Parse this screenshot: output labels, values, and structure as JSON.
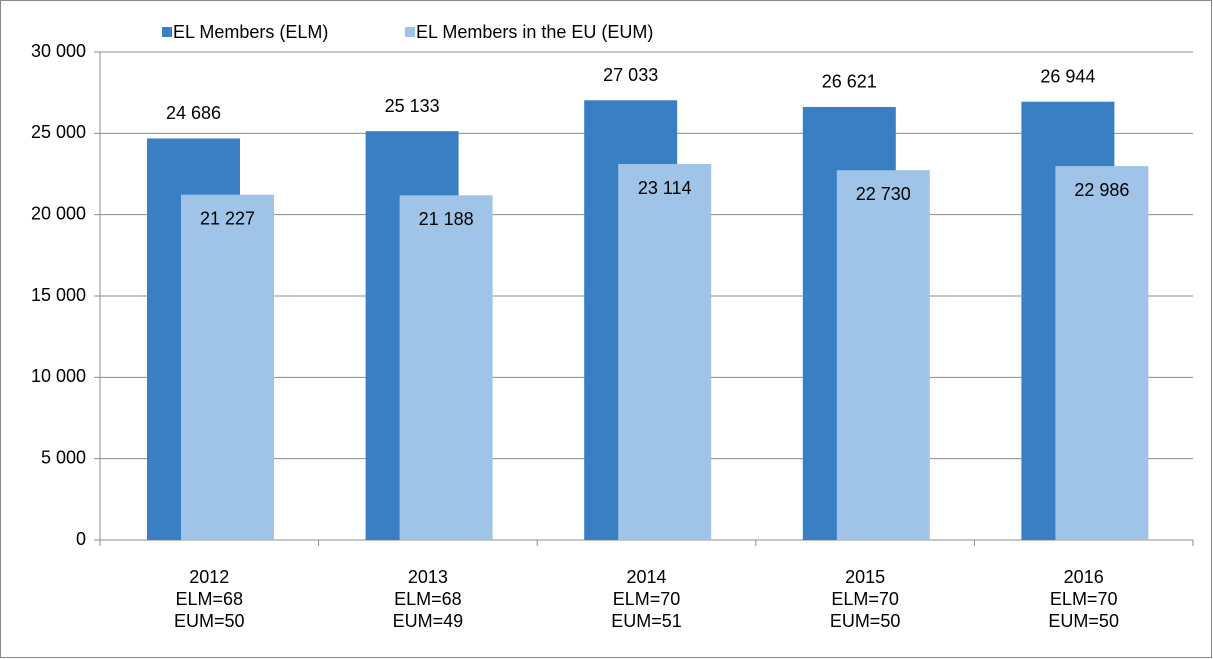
{
  "chart_data": {
    "type": "bar",
    "categories": [
      [
        "2012",
        "ELM=68",
        "EUM=50"
      ],
      [
        "2013",
        "ELM=68",
        "EUM=49"
      ],
      [
        "2014",
        "ELM=70",
        "EUM=51"
      ],
      [
        "2015",
        "ELM=70",
        "EUM=50"
      ],
      [
        "2016",
        "ELM=70",
        "EUM=50"
      ]
    ],
    "series": [
      {
        "name": "EL Members (ELM)",
        "color": "#3a7fc4",
        "values": [
          24686,
          25133,
          27033,
          26621,
          26944
        ],
        "value_labels": [
          "24 686",
          "25 133",
          "27 033",
          "26 621",
          "26 944"
        ]
      },
      {
        "name": "EL Members in the EU (EUM)",
        "color": "#9fc4e7",
        "values": [
          21227,
          21188,
          23114,
          22730,
          22986
        ],
        "value_labels": [
          "21 227",
          "21 188",
          "23 114",
          "22 730",
          "22 986"
        ]
      }
    ],
    "ylim": [
      0,
      30000
    ],
    "yticks": [
      0,
      {
        "value": 5000,
        "label": "5 000"
      },
      {
        "value": 10000,
        "label": "10 000"
      },
      {
        "value": 15000,
        "label": "15 000"
      },
      {
        "value": 20000,
        "label": "20 000"
      },
      {
        "value": 25000,
        "label": "25 000"
      },
      {
        "value": 30000,
        "label": "30 000"
      }
    ],
    "grid": true,
    "legend": "top"
  }
}
